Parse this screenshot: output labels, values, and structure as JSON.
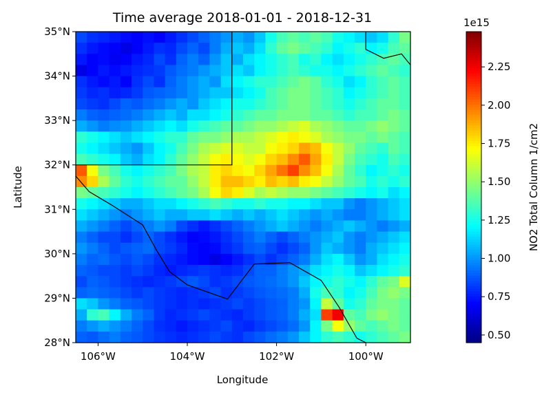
{
  "chart_data": {
    "type": "heatmap",
    "title": "Time average 2018-01-01 - 2018-12-31",
    "xlabel": "Longitude",
    "ylabel": "Latitude",
    "xlim": [
      -106.5,
      -99.0
    ],
    "ylim": [
      28.0,
      35.0
    ],
    "x_ticks": [
      {
        "value": -106,
        "label": "106°W"
      },
      {
        "value": -104,
        "label": "104°W"
      },
      {
        "value": -102,
        "label": "102°W"
      },
      {
        "value": -100,
        "label": "100°W"
      }
    ],
    "y_ticks": [
      {
        "value": 28,
        "label": "28°N"
      },
      {
        "value": 29,
        "label": "29°N"
      },
      {
        "value": 30,
        "label": "30°N"
      },
      {
        "value": 31,
        "label": "31°N"
      },
      {
        "value": 32,
        "label": "32°N"
      },
      {
        "value": 33,
        "label": "33°N"
      },
      {
        "value": 34,
        "label": "34°N"
      },
      {
        "value": 35,
        "label": "35°N"
      }
    ],
    "grid": false,
    "colormap": "jet",
    "colorbar": {
      "label": "NO2 Total Column 1/cm2",
      "exponent_label": "1e15",
      "vmin": 0.45,
      "vmax": 2.48,
      "ticks": [
        {
          "value": 0.5,
          "label": "0.50"
        },
        {
          "value": 0.75,
          "label": "0.75"
        },
        {
          "value": 1.0,
          "label": "1.00"
        },
        {
          "value": 1.25,
          "label": "1.25"
        },
        {
          "value": 1.5,
          "label": "1.50"
        },
        {
          "value": 1.75,
          "label": "1.75"
        },
        {
          "value": 2.0,
          "label": "2.00"
        },
        {
          "value": 2.25,
          "label": "2.25"
        }
      ]
    },
    "grid_cells": {
      "lon_start": -106.5,
      "lat_top": 35.0,
      "cell_size_deg": 0.25,
      "units": "1e15 molecules/cm2",
      "rows_north_to_south": [
        [
          0.85,
          0.8,
          0.78,
          0.75,
          0.72,
          0.7,
          0.73,
          0.7,
          0.75,
          0.8,
          0.85,
          0.9,
          0.95,
          1.0,
          1.05,
          1.0,
          1.1,
          1.25,
          1.35,
          1.4,
          1.35,
          1.4,
          1.35,
          1.25,
          1.2,
          1.15,
          1.1,
          1.15,
          1.3,
          1.45
        ],
        [
          0.8,
          0.75,
          0.72,
          0.7,
          0.65,
          0.7,
          0.75,
          0.8,
          0.78,
          0.85,
          0.9,
          0.85,
          0.95,
          1.05,
          1.1,
          1.05,
          1.15,
          1.3,
          1.4,
          1.45,
          1.4,
          1.35,
          1.3,
          1.2,
          1.25,
          1.3,
          1.2,
          1.25,
          1.35,
          1.4
        ],
        [
          0.75,
          0.7,
          0.72,
          0.68,
          0.7,
          0.75,
          0.78,
          0.85,
          0.8,
          0.9,
          0.95,
          0.9,
          1.0,
          1.1,
          1.05,
          1.15,
          1.2,
          1.25,
          1.3,
          1.35,
          1.25,
          1.3,
          1.2,
          1.15,
          1.2,
          1.25,
          1.3,
          1.35,
          1.4,
          1.35
        ],
        [
          0.65,
          0.7,
          0.75,
          0.72,
          0.75,
          0.78,
          0.8,
          0.82,
          0.88,
          0.92,
          0.95,
          1.0,
          1.05,
          1.1,
          1.15,
          1.1,
          1.2,
          1.25,
          1.3,
          1.35,
          1.3,
          1.25,
          1.25,
          1.2,
          1.25,
          1.3,
          1.35,
          1.4,
          1.35,
          1.3
        ],
        [
          0.8,
          0.75,
          0.72,
          0.75,
          0.7,
          0.8,
          0.85,
          0.8,
          0.9,
          0.95,
          1.0,
          1.05,
          1.0,
          1.15,
          1.2,
          1.25,
          1.3,
          1.3,
          1.35,
          1.4,
          1.45,
          1.4,
          1.3,
          1.25,
          1.15,
          1.2,
          1.3,
          1.35,
          1.4,
          1.35
        ],
        [
          0.82,
          0.78,
          0.8,
          0.76,
          0.78,
          0.82,
          0.88,
          0.9,
          0.92,
          0.95,
          1.0,
          1.05,
          1.1,
          1.1,
          1.15,
          1.2,
          1.25,
          1.35,
          1.4,
          1.45,
          1.45,
          1.4,
          1.35,
          1.3,
          1.2,
          1.25,
          1.3,
          1.35,
          1.4,
          1.35
        ],
        [
          0.85,
          0.82,
          0.8,
          0.85,
          0.9,
          0.88,
          0.92,
          0.95,
          1.0,
          1.05,
          1.0,
          1.1,
          1.15,
          1.2,
          1.25,
          1.25,
          1.3,
          1.35,
          1.4,
          1.45,
          1.45,
          1.4,
          1.35,
          1.3,
          1.25,
          1.3,
          1.35,
          1.4,
          1.4,
          1.35
        ],
        [
          0.95,
          0.9,
          0.88,
          0.9,
          0.92,
          0.95,
          1.0,
          1.05,
          1.1,
          1.05,
          1.15,
          1.15,
          1.2,
          1.25,
          1.3,
          1.35,
          1.4,
          1.4,
          1.45,
          1.45,
          1.45,
          1.4,
          1.4,
          1.35,
          1.3,
          1.35,
          1.35,
          1.4,
          1.45,
          1.4
        ],
        [
          1.05,
          1.0,
          0.95,
          0.98,
          1.0,
          1.05,
          1.1,
          1.15,
          1.2,
          1.15,
          1.25,
          1.3,
          1.35,
          1.4,
          1.4,
          1.45,
          1.5,
          1.5,
          1.55,
          1.6,
          1.65,
          1.55,
          1.5,
          1.45,
          1.4,
          1.4,
          1.45,
          1.5,
          1.45,
          1.4
        ],
        [
          1.3,
          1.25,
          1.2,
          1.15,
          1.1,
          1.15,
          1.2,
          1.25,
          1.3,
          1.3,
          1.4,
          1.45,
          1.45,
          1.5,
          1.55,
          1.55,
          1.6,
          1.65,
          1.7,
          1.75,
          1.7,
          1.65,
          1.55,
          1.5,
          1.45,
          1.45,
          1.4,
          1.45,
          1.4,
          1.35
        ],
        [
          1.25,
          1.2,
          1.15,
          1.1,
          1.05,
          1.0,
          1.1,
          1.2,
          1.25,
          1.35,
          1.45,
          1.55,
          1.6,
          1.65,
          1.65,
          1.6,
          1.6,
          1.7,
          1.75,
          1.8,
          1.9,
          1.85,
          1.7,
          1.6,
          1.5,
          1.4,
          1.35,
          1.3,
          1.4,
          1.35
        ],
        [
          1.35,
          1.3,
          1.25,
          1.2,
          1.1,
          1.05,
          1.15,
          1.2,
          1.3,
          1.4,
          1.5,
          1.6,
          1.7,
          1.75,
          1.7,
          1.65,
          1.7,
          1.8,
          1.85,
          1.95,
          2.05,
          1.9,
          1.75,
          1.6,
          1.45,
          1.35,
          1.3,
          1.25,
          1.35,
          1.3
        ],
        [
          2.05,
          1.7,
          1.45,
          1.35,
          1.25,
          1.2,
          1.25,
          1.3,
          1.35,
          1.45,
          1.55,
          1.6,
          1.75,
          1.8,
          1.75,
          1.7,
          1.8,
          1.9,
          2.0,
          2.1,
          1.95,
          1.85,
          1.7,
          1.55,
          1.4,
          1.3,
          1.2,
          1.25,
          1.3,
          1.25
        ],
        [
          1.95,
          1.8,
          1.55,
          1.4,
          1.3,
          1.25,
          1.3,
          1.35,
          1.4,
          1.4,
          1.5,
          1.6,
          1.75,
          1.85,
          1.85,
          1.8,
          1.75,
          1.85,
          1.8,
          1.85,
          1.75,
          1.7,
          1.6,
          1.5,
          1.4,
          1.35,
          1.25,
          1.3,
          1.25,
          1.3
        ],
        [
          1.45,
          1.4,
          1.35,
          1.3,
          1.25,
          1.2,
          1.25,
          1.3,
          1.35,
          1.4,
          1.45,
          1.55,
          1.7,
          1.8,
          1.75,
          1.65,
          1.55,
          1.6,
          1.55,
          1.5,
          1.5,
          1.45,
          1.4,
          1.35,
          1.3,
          1.25,
          1.2,
          1.25,
          1.15,
          1.2
        ],
        [
          1.25,
          1.2,
          1.15,
          1.1,
          1.05,
          1.05,
          1.1,
          1.15,
          1.15,
          1.2,
          1.25,
          1.3,
          1.35,
          1.3,
          1.25,
          1.25,
          1.3,
          1.25,
          1.25,
          1.2,
          1.2,
          1.15,
          1.1,
          1.1,
          1.0,
          0.95,
          1.0,
          1.05,
          1.1,
          1.15
        ],
        [
          1.15,
          1.1,
          1.05,
          1.0,
          0.95,
          1.0,
          1.05,
          1.1,
          1.05,
          1.05,
          1.1,
          1.1,
          1.15,
          1.1,
          1.05,
          1.1,
          1.05,
          1.1,
          1.15,
          1.1,
          1.05,
          1.0,
          1.05,
          1.0,
          0.95,
          0.95,
          1.0,
          1.05,
          1.1,
          1.15
        ],
        [
          1.05,
          1.0,
          0.95,
          0.9,
          0.85,
          0.9,
          0.95,
          1.0,
          0.95,
          0.85,
          0.8,
          0.75,
          0.8,
          0.85,
          0.9,
          0.95,
          1.0,
          1.05,
          1.1,
          1.05,
          1.0,
          0.95,
          1.0,
          1.05,
          1.1,
          1.05,
          1.0,
          0.95,
          1.0,
          1.05
        ],
        [
          0.95,
          0.9,
          0.85,
          0.85,
          0.8,
          0.85,
          0.9,
          0.85,
          0.8,
          0.75,
          0.7,
          0.72,
          0.75,
          0.8,
          0.85,
          0.9,
          0.95,
          0.9,
          0.85,
          0.9,
          0.95,
          1.0,
          1.05,
          1.1,
          1.0,
          0.95,
          1.0,
          1.05,
          1.1,
          1.15
        ],
        [
          1.0,
          0.95,
          0.9,
          0.85,
          0.88,
          0.9,
          0.92,
          0.85,
          0.82,
          0.78,
          0.72,
          0.7,
          0.72,
          0.78,
          0.82,
          0.88,
          0.9,
          0.85,
          0.8,
          0.85,
          0.9,
          1.0,
          1.1,
          1.05,
          1.0,
          0.95,
          1.05,
          1.1,
          1.15,
          1.2
        ],
        [
          0.95,
          0.9,
          0.92,
          0.88,
          0.85,
          0.88,
          0.85,
          0.8,
          0.78,
          0.75,
          0.72,
          0.7,
          0.65,
          0.7,
          0.75,
          0.8,
          0.85,
          0.8,
          0.85,
          0.9,
          0.95,
          1.05,
          1.15,
          1.2,
          1.1,
          1.0,
          1.05,
          1.15,
          1.2,
          1.25
        ],
        [
          0.9,
          0.88,
          0.85,
          0.85,
          0.82,
          0.85,
          0.82,
          0.78,
          0.75,
          0.78,
          0.8,
          0.82,
          0.8,
          0.78,
          0.8,
          0.85,
          0.9,
          0.9,
          0.95,
          1.0,
          1.05,
          1.15,
          1.2,
          1.25,
          1.2,
          1.1,
          1.15,
          1.2,
          1.25,
          1.3
        ],
        [
          0.85,
          0.9,
          0.88,
          0.85,
          0.82,
          0.8,
          0.78,
          0.8,
          0.82,
          0.85,
          0.88,
          0.85,
          0.8,
          0.82,
          0.85,
          0.88,
          0.9,
          0.92,
          0.95,
          1.0,
          1.1,
          1.2,
          1.25,
          1.3,
          1.25,
          1.2,
          1.3,
          1.4,
          1.45,
          1.65
        ],
        [
          0.9,
          0.92,
          0.9,
          0.88,
          0.85,
          0.82,
          0.85,
          0.82,
          0.8,
          0.78,
          0.8,
          0.82,
          0.85,
          0.8,
          0.82,
          0.85,
          0.88,
          0.9,
          0.92,
          0.95,
          1.05,
          1.25,
          1.35,
          1.3,
          1.2,
          1.25,
          1.35,
          1.45,
          1.5,
          1.45
        ],
        [
          1.15,
          1.1,
          1.0,
          0.95,
          0.9,
          0.88,
          0.85,
          0.82,
          0.8,
          0.78,
          0.8,
          0.78,
          0.8,
          0.82,
          0.85,
          0.82,
          0.85,
          0.88,
          0.9,
          0.95,
          1.0,
          1.2,
          1.6,
          1.4,
          1.25,
          1.3,
          1.4,
          1.45,
          1.45,
          1.4
        ],
        [
          1.05,
          1.3,
          1.35,
          1.2,
          1.05,
          0.95,
          0.9,
          0.82,
          0.78,
          0.8,
          0.82,
          0.85,
          0.82,
          0.8,
          0.78,
          0.82,
          0.85,
          0.88,
          0.9,
          0.95,
          1.05,
          1.15,
          2.1,
          2.25,
          1.4,
          1.35,
          1.45,
          1.5,
          1.45,
          1.4
        ],
        [
          0.95,
          1.0,
          1.05,
          1.0,
          0.95,
          0.9,
          0.85,
          0.8,
          0.78,
          0.75,
          0.78,
          0.8,
          0.82,
          0.85,
          0.8,
          0.78,
          0.82,
          0.85,
          0.88,
          0.92,
          1.0,
          1.2,
          1.45,
          1.7,
          1.5,
          1.4,
          1.35,
          1.4,
          1.45,
          1.4
        ],
        [
          0.9,
          0.88,
          0.92,
          0.95,
          0.9,
          0.88,
          0.85,
          0.82,
          0.8,
          0.78,
          0.8,
          0.82,
          0.85,
          0.82,
          0.8,
          0.85,
          0.88,
          0.92,
          0.95,
          1.0,
          1.1,
          1.2,
          1.3,
          1.35,
          1.3,
          1.25,
          1.3,
          1.35,
          1.4,
          1.45
        ]
      ]
    },
    "boundary_lines": [
      {
        "name": "mexico-border",
        "points": [
          [
            -106.5,
            31.75
          ],
          [
            -106.2,
            31.4
          ],
          [
            -105.7,
            31.1
          ],
          [
            -105.0,
            30.65
          ],
          [
            -104.7,
            30.1
          ],
          [
            -104.4,
            29.6
          ],
          [
            -104.0,
            29.3
          ],
          [
            -103.1,
            28.98
          ],
          [
            -102.5,
            29.77
          ],
          [
            -101.7,
            29.8
          ],
          [
            -101.0,
            29.4
          ],
          [
            -100.6,
            28.8
          ],
          [
            -100.2,
            28.1
          ],
          [
            -100.0,
            28.0
          ]
        ]
      },
      {
        "name": "new-mexico-texas-border",
        "points": [
          [
            -106.5,
            32.0
          ],
          [
            -103.0,
            32.0
          ],
          [
            -103.0,
            35.0
          ]
        ]
      },
      {
        "name": "oklahoma-border",
        "points": [
          [
            -100.0,
            35.0
          ],
          [
            -100.0,
            34.6
          ],
          [
            -99.6,
            34.4
          ],
          [
            -99.2,
            34.5
          ],
          [
            -99.0,
            34.25
          ]
        ]
      }
    ]
  }
}
